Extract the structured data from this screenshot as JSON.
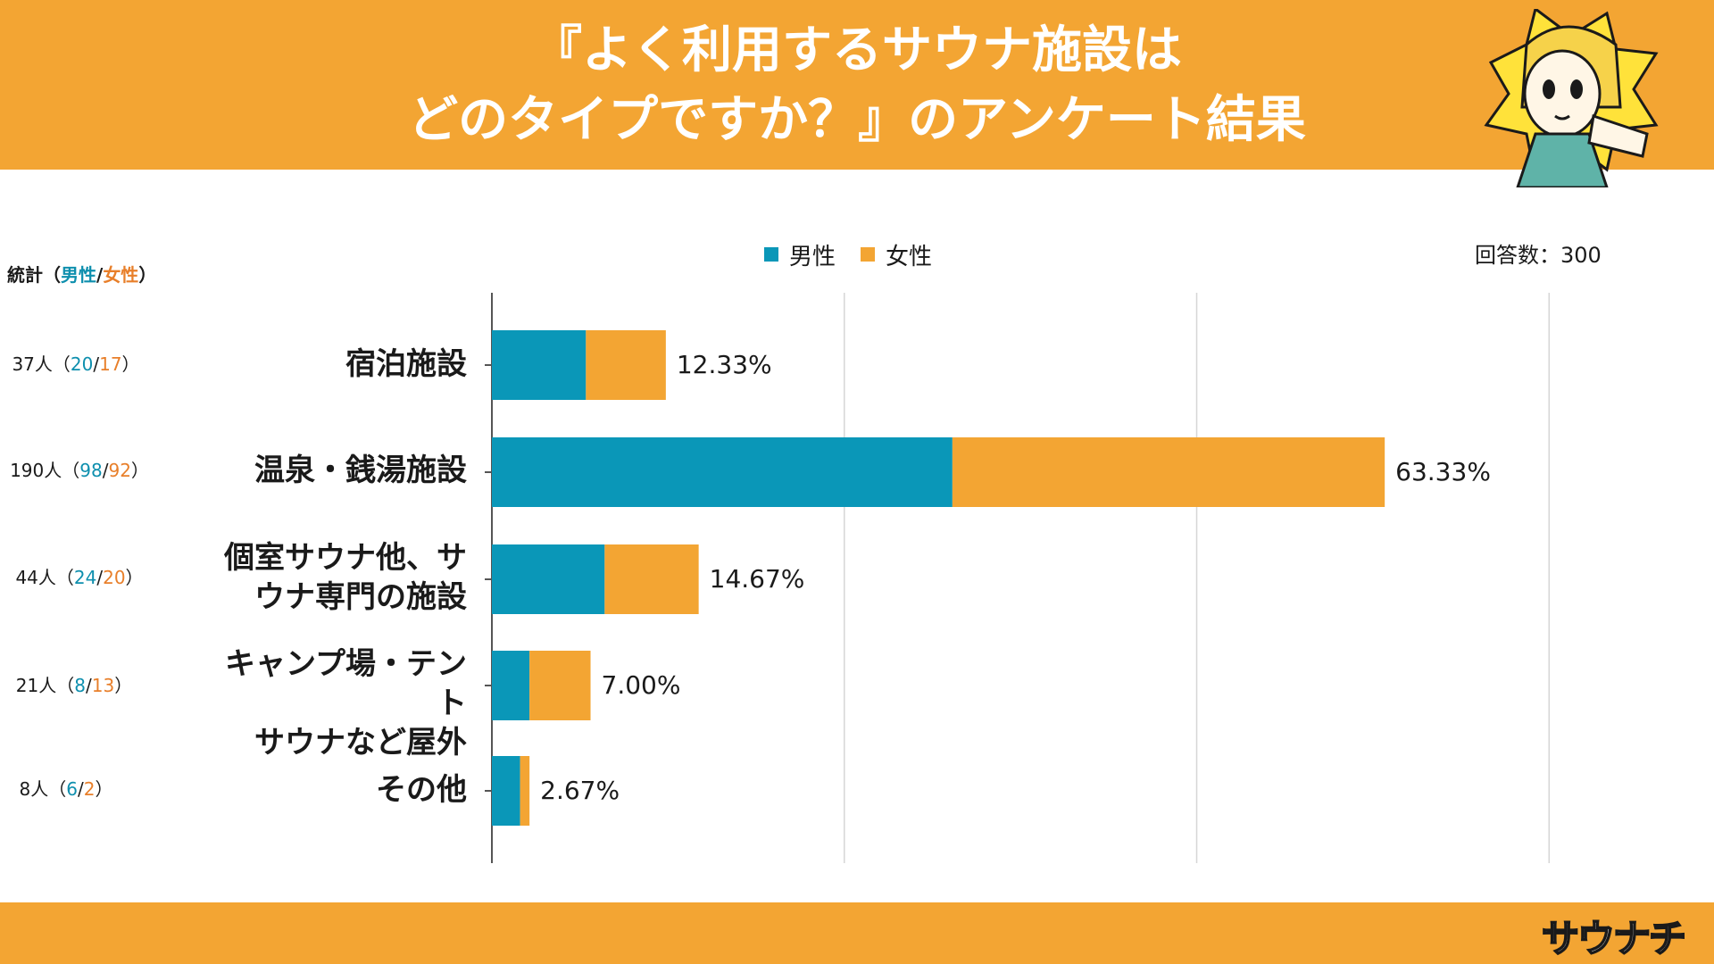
{
  "header": {
    "title_line1": "『よく利用するサウナ施設は",
    "title_line2": "どのタイプですか？』のアンケート結果",
    "mascot_icon": "mascot-pointing-icon",
    "bg_color": "#f3a533"
  },
  "legend": {
    "male": "男性",
    "female": "女性"
  },
  "respondents": "回答数：300",
  "stats_title": {
    "prefix": "統計（",
    "male": "男性",
    "slash": "/",
    "female": "女性",
    "suffix": "）"
  },
  "stats": [
    {
      "total": "37人",
      "male": "20",
      "female": "17"
    },
    {
      "total": "190人",
      "male": "98",
      "female": "92"
    },
    {
      "total": "44人",
      "male": "24",
      "female": "20"
    },
    {
      "total": "21人",
      "male": "8",
      "female": "13"
    },
    {
      "total": "8人",
      "male": "6",
      "female": "2"
    }
  ],
  "footer": {
    "logo_text": "サウナチ"
  },
  "colors": {
    "male": "#0a97b8",
    "female": "#f3a533",
    "accent": "#f3a533"
  },
  "chart_data": {
    "type": "bar",
    "orientation": "horizontal",
    "stacked": true,
    "categories": [
      [
        "宿泊施設"
      ],
      [
        "温泉・銭湯施設"
      ],
      [
        "個室サウナ他、サ",
        "ウナ専門の施設"
      ],
      [
        "キャンプ場・テント",
        "サウナなど屋外"
      ],
      [
        "その他"
      ]
    ],
    "series": [
      {
        "name": "男性",
        "values": [
          6.67,
          32.67,
          8.0,
          2.67,
          2.0
        ]
      },
      {
        "name": "女性",
        "values": [
          5.67,
          30.67,
          6.67,
          4.33,
          0.67
        ]
      }
    ],
    "data_labels": [
      "12.33%",
      "63.33%",
      "14.67%",
      "7.00%",
      "2.67%"
    ],
    "xlim": [
      0,
      75
    ],
    "gridlines": [
      0,
      25,
      50,
      75
    ],
    "legend_position": "top",
    "title": "",
    "xlabel": "",
    "ylabel": ""
  }
}
